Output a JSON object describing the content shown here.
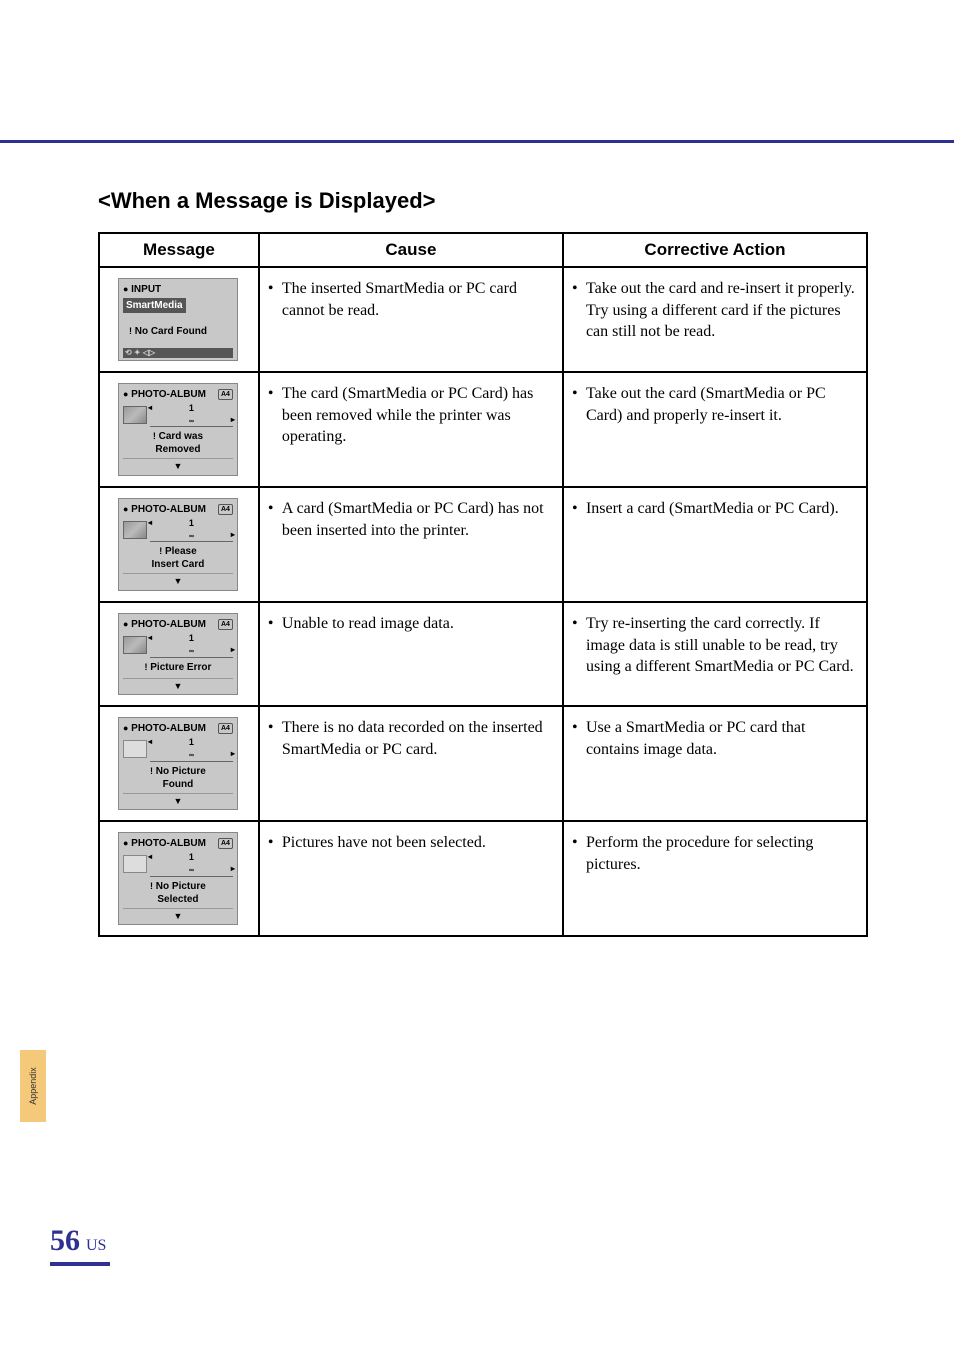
{
  "header_bar_color": "#2e3192",
  "section_title": "<When a Message is Displayed>",
  "columns": {
    "message": "Message",
    "cause": "Cause",
    "action": "Corrective Action"
  },
  "rows": [
    {
      "lcd": {
        "type": "input",
        "title_prefix": "●",
        "title": "INPUT",
        "highlight": "SmartMedia",
        "warn_prefix": "!",
        "line1": "No Card Found",
        "line2": "",
        "bottom_glyphs": "⟲ ✦ ◁▷"
      },
      "cause": "The inserted SmartMedia or PC card cannot be read.",
      "action": "Take out the card and re-insert it properly.  Try using a different card if the pictures can still not be read."
    },
    {
      "lcd": {
        "type": "photo",
        "title_prefix": "●",
        "title": "PHOTO-ALBUM",
        "badge": "A4",
        "show_thumb": true,
        "counter": "1",
        "counter_sub": "∞",
        "warn_prefix": "!",
        "line1": "Card was",
        "line2": "Removed"
      },
      "cause": "The card (SmartMedia or PC Card) has been removed while the printer was operating.",
      "action": "Take out the card (SmartMedia or PC Card) and properly re-insert it."
    },
    {
      "lcd": {
        "type": "photo",
        "title_prefix": "●",
        "title": "PHOTO-ALBUM",
        "badge": "A4",
        "show_thumb": true,
        "counter": "1",
        "counter_sub": "∞",
        "warn_prefix": "!",
        "line1": "Please",
        "line2": "Insert Card"
      },
      "cause": "A card (SmartMedia or PC Card) has not been inserted into the printer.",
      "action": "Insert a card (SmartMedia or PC Card)."
    },
    {
      "lcd": {
        "type": "photo",
        "title_prefix": "●",
        "title": "PHOTO-ALBUM",
        "badge": "A4",
        "show_thumb": true,
        "counter": "1",
        "counter_sub": "∞",
        "warn_prefix": "!",
        "line1": "Picture Error",
        "line2": ""
      },
      "cause": "Unable to read image data.",
      "action": "Try re-inserting the card correctly.  If image data is still unable to be read, try using a different SmartMedia or PC Card."
    },
    {
      "lcd": {
        "type": "photo",
        "title_prefix": "●",
        "title": "PHOTO-ALBUM",
        "badge": "A4",
        "show_thumb": false,
        "counter": "1",
        "counter_sub": "∞",
        "warn_prefix": "!",
        "line1": "No Picture",
        "line2": "Found"
      },
      "cause": "There is no data recorded on the inserted SmartMedia or PC card.",
      "action": "Use a SmartMedia or PC card that contains image data."
    },
    {
      "lcd": {
        "type": "photo",
        "title_prefix": "●",
        "title": "PHOTO-ALBUM",
        "badge": "A4",
        "show_thumb": false,
        "counter": "1",
        "counter_sub": "∞",
        "warn_prefix": "!",
        "line1": "No Picture",
        "line2": "Selected"
      },
      "cause": "Pictures have not been selected.",
      "action": "Perform the procedure for selecting pictures."
    }
  ],
  "side_tab": "Appendix",
  "page_number": "56",
  "page_region": "US"
}
